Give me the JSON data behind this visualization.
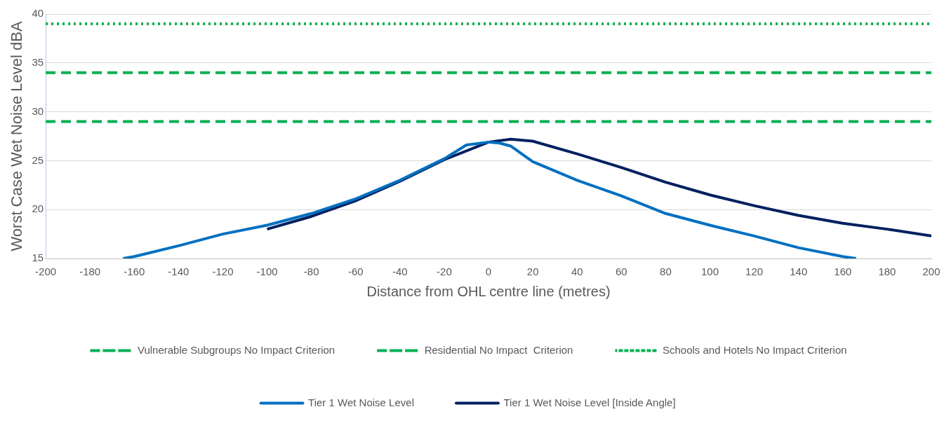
{
  "chart_data": {
    "type": "line",
    "xlabel": "Distance from OHL centre line (metres)",
    "ylabel": "Worst Case Wet Noise Level dBA",
    "xlim": [
      -200,
      200
    ],
    "xticks": [
      -200,
      -180,
      -160,
      -140,
      -120,
      -100,
      -80,
      -60,
      -40,
      -20,
      0,
      20,
      40,
      60,
      80,
      100,
      120,
      140,
      160,
      180,
      200
    ],
    "ylim": [
      15,
      40
    ],
    "yticks": [
      15,
      20,
      25,
      30,
      35,
      40
    ],
    "grid": "y",
    "legend": "bottom",
    "marker": "none",
    "ref_lines": [
      {
        "axis": "y",
        "value": 29,
        "label": "Vulnerable Subgroups No Impact Criterion",
        "color": "#00b050",
        "line_style": "dashed"
      },
      {
        "axis": "y",
        "value": 34,
        "label": "Residential No Impact  Criterion",
        "color": "#00b050",
        "line_style": "dashed"
      },
      {
        "axis": "y",
        "value": 39,
        "label": "Schools and Hotels No Impact Criterion",
        "color": "#00b050",
        "line_style": "dotted"
      }
    ],
    "series": [
      {
        "name": "Tier 1 Wet Noise Level",
        "color": "#0070c0",
        "x": [
          -165,
          -160,
          -140,
          -120,
          -100,
          -80,
          -60,
          -40,
          -20,
          -10,
          0,
          5,
          10,
          20,
          40,
          60,
          80,
          100,
          120,
          140,
          160,
          166
        ],
        "values": [
          15,
          15.2,
          16.3,
          17.5,
          18.4,
          19.6,
          21.1,
          23,
          25.2,
          26.6,
          26.9,
          26.8,
          26.5,
          24.9,
          23,
          21.4,
          19.6,
          18.4,
          17.3,
          16.1,
          15.2,
          15
        ]
      },
      {
        "name": "Tier 1 Wet Noise Level [Inside Angle]",
        "color": "#002060",
        "x": [
          -100,
          -80,
          -60,
          -40,
          -20,
          0,
          10,
          20,
          40,
          60,
          80,
          100,
          120,
          140,
          160,
          180,
          200
        ],
        "values": [
          18,
          19.3,
          20.9,
          22.9,
          25.1,
          26.9,
          27.2,
          27,
          25.7,
          24.3,
          22.8,
          21.5,
          20.4,
          19.4,
          18.6,
          18,
          17.3
        ]
      }
    ]
  }
}
